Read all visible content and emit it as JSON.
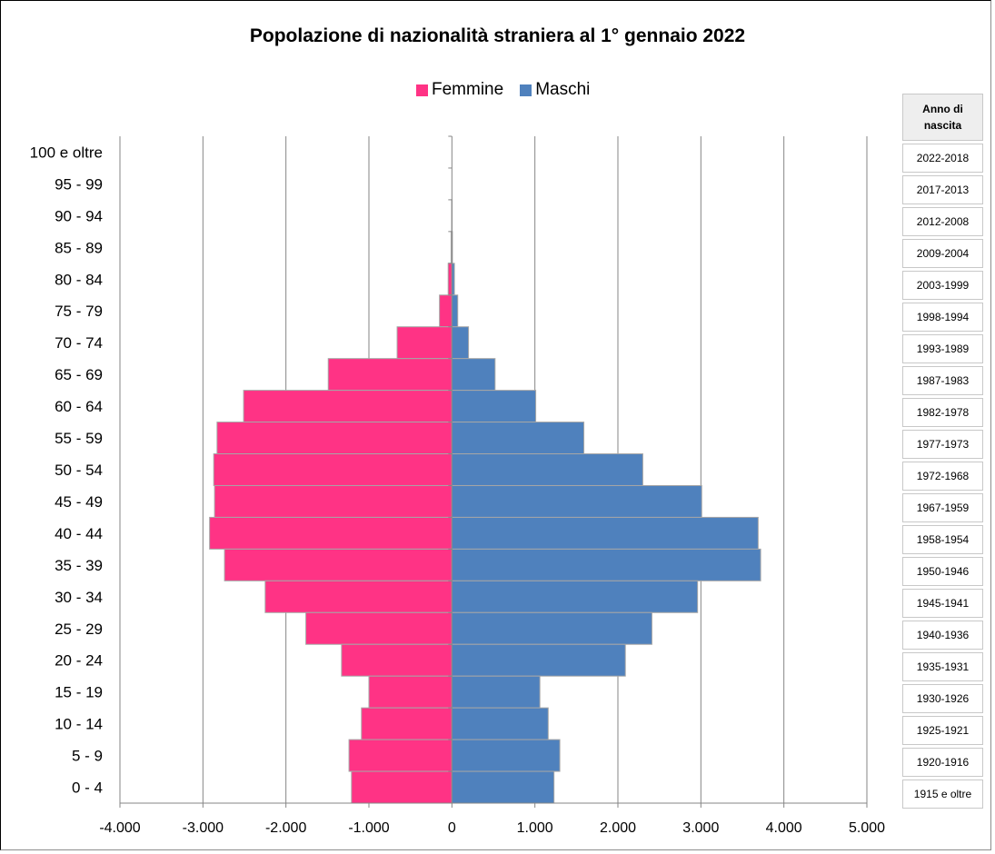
{
  "chart_data": {
    "type": "bar",
    "orientation": "horizontal",
    "title": "Popolazione di nazionalità straniera al  1° gennaio 2022",
    "categories": [
      "100 e oltre",
      "95 - 99",
      "90 - 94",
      "85 - 89",
      "80 - 84",
      "75 - 79",
      "70 - 74",
      "65 - 69",
      "60 - 64",
      "55 - 59",
      "50 - 54",
      "45 - 49",
      "40 - 44",
      "35 - 39",
      "30 - 34",
      "25 - 29",
      "20 - 24",
      "15 - 19",
      "10 - 14",
      "5 - 9",
      "0 - 4"
    ],
    "series": [
      {
        "name": "Femmine",
        "color": "#ff3385",
        "values": [
          0,
          0,
          3,
          10,
          45,
          150,
          660,
          1490,
          2510,
          2830,
          2870,
          2860,
          2920,
          2740,
          2250,
          1760,
          1330,
          1000,
          1090,
          1240,
          1210
        ]
      },
      {
        "name": "Maschi",
        "color": "#4f81bd",
        "values": [
          0,
          0,
          2,
          6,
          30,
          70,
          200,
          520,
          1010,
          1590,
          2300,
          3010,
          3690,
          3720,
          2960,
          2410,
          2090,
          1060,
          1160,
          1300,
          1230
        ]
      }
    ],
    "xlim": [
      -4000,
      5000
    ],
    "xticks": [
      "-4.000",
      "-3.000",
      "-2.000",
      "-1.000",
      "0",
      "1.000",
      "2.000",
      "3.000",
      "4.000",
      "5.000"
    ],
    "grid": true,
    "legend": "top"
  },
  "birth_years": {
    "header_line1": "Anno di",
    "header_line2": "nascita",
    "values": [
      "2022-2018",
      "2017-2013",
      "2012-2008",
      "2009-2004",
      "2003-1999",
      "1998-1994",
      "1993-1989",
      "1987-1983",
      "1982-1978",
      "1977-1973",
      "1972-1968",
      "1967-1959",
      "1958-1954",
      "1950-1946",
      "1945-1941",
      "1940-1936",
      "1935-1931",
      "1930-1926",
      "1925-1921",
      "1920-1916",
      "1915 e oltre"
    ]
  }
}
